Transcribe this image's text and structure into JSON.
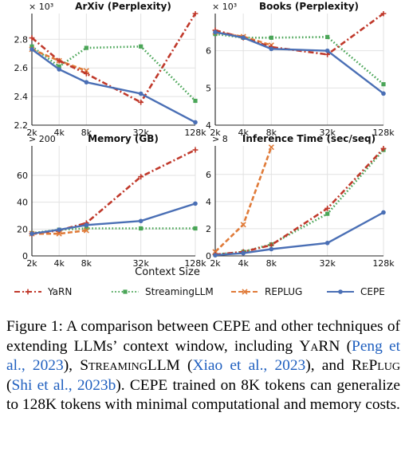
{
  "chart_data": [
    {
      "type": "line",
      "title": "ArXiv (Perplexity)",
      "multiplier": "× 10³",
      "x": [
        "2k",
        "4k",
        "8k",
        "32k",
        "128k"
      ],
      "xticks_shown": [
        "2k",
        "4k",
        "8k",
        "32k",
        "128k"
      ],
      "x_log2": [
        1,
        2,
        3,
        5,
        7
      ],
      "ylim": [
        2.2,
        2.98
      ],
      "yticks": [
        "2.2",
        "2.4",
        "2.6",
        "2.8"
      ],
      "ytick_values": [
        2.2,
        2.4,
        2.6,
        2.8
      ],
      "grid": true,
      "series": [
        {
          "name": "YaRN",
          "values": [
            2.81,
            2.65,
            2.56,
            2.36,
            2.98
          ]
        },
        {
          "name": "StreamingLLM",
          "values": [
            2.75,
            2.61,
            2.74,
            2.75,
            2.37
          ]
        },
        {
          "name": "REPLUG",
          "values": [
            2.73,
            2.65,
            2.58,
            null,
            null
          ]
        },
        {
          "name": "CEPE",
          "values": [
            2.73,
            2.59,
            2.5,
            2.42,
            2.22
          ]
        }
      ]
    },
    {
      "type": "line",
      "title": "Books (Perplexity)",
      "multiplier": "× 10³",
      "x": [
        "2k",
        "4k",
        "8k",
        "32k",
        "128k"
      ],
      "xticks_shown": [
        "2k",
        "4k",
        "8k",
        "32k",
        "128k"
      ],
      "x_log2": [
        1,
        2,
        3,
        5,
        7
      ],
      "ylim": [
        4,
        7.0
      ],
      "yticks": [
        "4",
        "5",
        "6"
      ],
      "ytick_values": [
        4,
        5,
        6
      ],
      "grid": true,
      "series": [
        {
          "name": "YaRN",
          "values": [
            6.55,
            6.35,
            6.1,
            5.9,
            7.0
          ]
        },
        {
          "name": "StreamingLLM",
          "values": [
            6.45,
            6.35,
            6.35,
            6.37,
            5.1
          ]
        },
        {
          "name": "REPLUG",
          "values": [
            6.5,
            6.38,
            6.15,
            null,
            null
          ]
        },
        {
          "name": "CEPE",
          "values": [
            6.5,
            6.35,
            6.05,
            6.0,
            4.85
          ]
        }
      ]
    },
    {
      "type": "line",
      "title": "Memory (GB)",
      "multiplier": "> 200",
      "x": [
        "2k",
        "4k",
        "8k",
        "32k",
        "128k"
      ],
      "xticks_shown": [
        "2k",
        "4k",
        "8k",
        "32k",
        "128k"
      ],
      "x_log2": [
        1,
        2,
        3,
        5,
        7
      ],
      "ylim": [
        0,
        82
      ],
      "yticks": [
        "0",
        "20",
        "40",
        "60"
      ],
      "ytick_values": [
        0,
        20,
        40,
        60
      ],
      "grid": true,
      "series": [
        {
          "name": "YaRN",
          "values": [
            16.5,
            19,
            24.5,
            59,
            79
          ]
        },
        {
          "name": "StreamingLLM",
          "values": [
            17,
            19.5,
            20.5,
            20.5,
            20.5
          ]
        },
        {
          "name": "REPLUG",
          "values": [
            16.5,
            16.5,
            19,
            null,
            null
          ]
        },
        {
          "name": "CEPE",
          "values": [
            16.5,
            19.5,
            23,
            26,
            39
          ]
        }
      ]
    },
    {
      "type": "line",
      "title": "Inference Time (sec/seq)",
      "multiplier": "> 8",
      "x": [
        "2k",
        "4k",
        "8k",
        "32k",
        "128k"
      ],
      "xticks_shown": [
        "2k",
        "4k",
        "8k",
        "32k",
        "128k"
      ],
      "x_log2": [
        1,
        2,
        3,
        5,
        7
      ],
      "ylim": [
        0,
        8.1
      ],
      "yticks": [
        "0",
        "2",
        "4",
        "6"
      ],
      "ytick_values": [
        0,
        2,
        4,
        6
      ],
      "grid": true,
      "series": [
        {
          "name": "YaRN",
          "values": [
            0.1,
            0.3,
            0.8,
            3.5,
            7.9
          ]
        },
        {
          "name": "StreamingLLM",
          "values": [
            0.1,
            0.3,
            0.85,
            3.1,
            7.8
          ]
        },
        {
          "name": "REPLUG",
          "values": [
            0.3,
            2.3,
            8.0,
            null,
            null
          ]
        },
        {
          "name": "CEPE",
          "values": [
            0.05,
            0.2,
            0.5,
            0.95,
            3.2
          ]
        }
      ]
    }
  ],
  "xlabel": "Context Size",
  "legend": {
    "placement": "bottom",
    "items": [
      {
        "name": "YaRN",
        "color": "#c0392b",
        "marker": "+",
        "dash": "dashdot"
      },
      {
        "name": "StreamingLLM",
        "color": "#4aa557",
        "marker": "square",
        "dash": "dotted"
      },
      {
        "name": "REPLUG",
        "color": "#e07b39",
        "marker": "x",
        "dash": "dashed"
      },
      {
        "name": "CEPE",
        "color": "#4a6fb5",
        "marker": "circle",
        "dash": "solid"
      }
    ]
  },
  "caption": {
    "label": "Figure 1:",
    "text1": "A comparison between CEPE and other techniques of extending LLMs’ context window, including",
    "yarn": "YaRN",
    "yarn_cite": "Peng et al., 2023",
    "streaming": "StreamingLLM",
    "streaming_cite": "Xiao et al., 2023",
    "replug": "RePlug",
    "replug_cite": "Shi et al., 2023b",
    "text2": "CEPE trained on 8K tokens can generalize to 128K tokens with minimal computational and memory costs."
  }
}
